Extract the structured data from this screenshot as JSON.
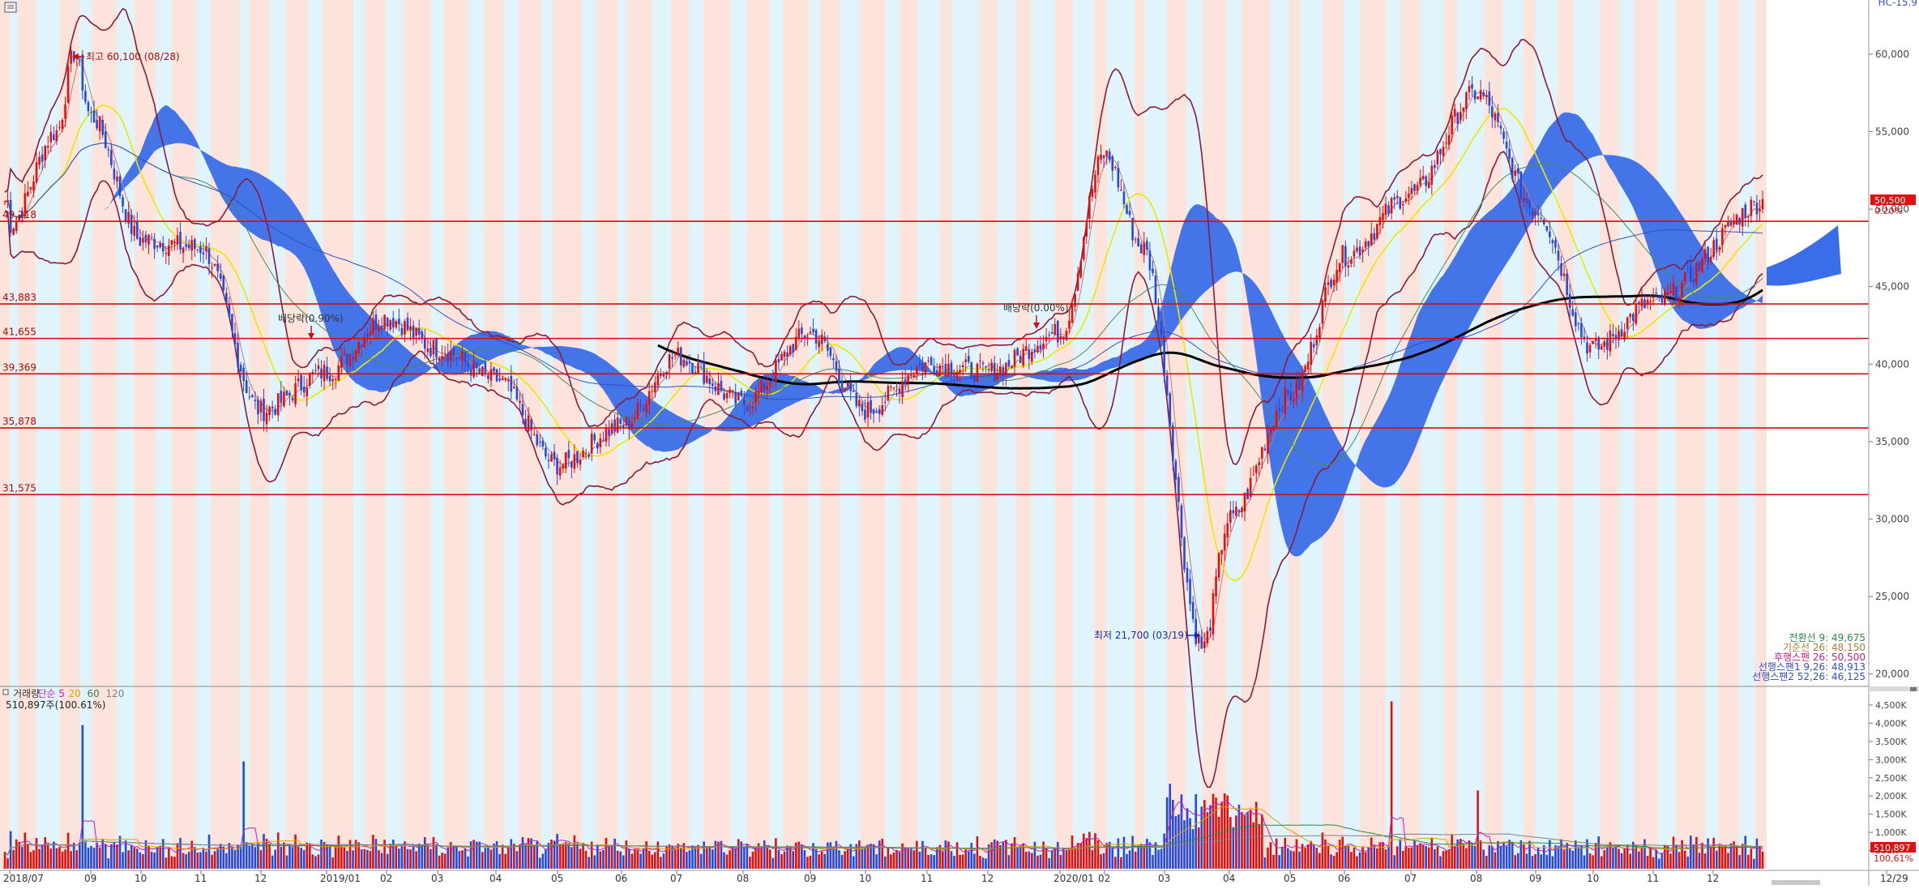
{
  "window": {
    "corner_label": "HC-15.9"
  },
  "price_axis": {
    "ticks": [
      "60,000",
      "55,000",
      "50,000",
      "45,000",
      "40,000",
      "35,000",
      "30,000",
      "25,000",
      "20,000"
    ],
    "values": [
      60000,
      55000,
      50000,
      45000,
      40000,
      35000,
      30000,
      25000,
      20000
    ],
    "ylim": [
      19300,
      63500
    ],
    "current_badge": "50,500",
    "current_change": "0.20%"
  },
  "volume_axis": {
    "ticks": [
      "4,500K",
      "4,000K",
      "3,500K",
      "3,000K",
      "2,500K",
      "2,000K",
      "1,500K",
      "1,000K",
      "500K"
    ],
    "values": [
      4500,
      4000,
      3500,
      3000,
      2500,
      2000,
      1500,
      1000,
      500
    ],
    "ylim": [
      0,
      4900
    ],
    "current_badge": "510,897",
    "current_pct": "100,61%"
  },
  "x_axis": {
    "months": [
      "2018/07",
      "09",
      "10",
      "11",
      "12",
      "2019/01",
      "02",
      "03",
      "04",
      "05",
      "06",
      "07",
      "08",
      "09",
      "10",
      "11",
      "12",
      "2020/01",
      "02",
      "03",
      "04",
      "05",
      "06",
      "07",
      "08",
      "09",
      "10",
      "11",
      "12",
      "12/29"
    ]
  },
  "colors": {
    "shade_pink": "#fce4dc",
    "shade_blue": "#e2f4fb",
    "cloud": "#3a6ee8",
    "hline": "#cc1111",
    "bollinger": "#8b1a3a",
    "long_ma": "#000000",
    "up": "#e01010",
    "down": "#2848d8",
    "ma5": "#c87878",
    "ma20": "#e8e800",
    "ma60": "#4a8a5a",
    "ma120": "#3050c0"
  },
  "annotations": {
    "high": "최고 60,100 (08/28)",
    "low": "최저 21,700 (03/19)",
    "div1": "배당락(0.90%)",
    "div2": "배당락(0.00%)"
  },
  "levels": [
    {
      "label": "49,218",
      "value": 49218
    },
    {
      "label": "43,883",
      "value": 43883
    },
    {
      "label": "41,655",
      "value": 41655
    },
    {
      "label": "39,369",
      "value": 39369
    },
    {
      "label": "35,878",
      "value": 35878
    },
    {
      "label": "31,575",
      "value": 31575
    }
  ],
  "ichimoku_legend": [
    {
      "text": "전환선 9: 49,675",
      "color": "#2a8a4a"
    },
    {
      "text": "기준선 26: 48,150",
      "color": "#b07a30"
    },
    {
      "text": "후행스팬 26: 50,500",
      "color": "#c02080"
    },
    {
      "text": "선행스팬1 9,26: 48,913",
      "color": "#3050c0"
    },
    {
      "text": "선행스팬2 52,26: 46,125",
      "color": "#3050c0"
    }
  ],
  "volume_legend": {
    "items": [
      {
        "text": "거래량",
        "color": "#333333"
      },
      {
        "text": "단순 5",
        "color": "#c020c0"
      },
      {
        "text": "20",
        "color": "#e0a000"
      },
      {
        "text": "60",
        "color": "#2a8a4a"
      },
      {
        "text": "120",
        "color": "#808080"
      }
    ],
    "value": "510,897주(100.61%)"
  },
  "chart_data": {
    "type": "candlestick",
    "period": "2018/07 – 2020/12/29 (daily)",
    "price_anchors": [
      [
        "2018/07",
        49000
      ],
      [
        "2018/08 early",
        55000
      ],
      [
        "2018/08/28",
        60100
      ],
      [
        "2018/09",
        56000
      ],
      [
        "2018/10",
        48000
      ],
      [
        "2018/11",
        47500
      ],
      [
        "2018/12",
        37000
      ],
      [
        "2019/01",
        39500
      ],
      [
        "2019/02",
        43000
      ],
      [
        "2019/03",
        41000
      ],
      [
        "2019/04",
        39000
      ],
      [
        "2019/05",
        33500
      ],
      [
        "2019/06",
        36000
      ],
      [
        "2019/07",
        40500
      ],
      [
        "2019/08",
        37500
      ],
      [
        "2019/09",
        42000
      ],
      [
        "2019/10",
        37000
      ],
      [
        "2019/11",
        40000
      ],
      [
        "2019/12",
        39500
      ],
      [
        "2020/01",
        42000
      ],
      [
        "2020/02",
        53500
      ],
      [
        "2020/03 early",
        47500
      ],
      [
        "2020/03/19",
        21700
      ],
      [
        "2020/04",
        30000
      ],
      [
        "2020/05",
        38000
      ],
      [
        "2020/06",
        47000
      ],
      [
        "2020/07",
        51000
      ],
      [
        "2020/08",
        57500
      ],
      [
        "2020/09",
        50000
      ],
      [
        "2020/10",
        41000
      ],
      [
        "2020/11",
        44000
      ],
      [
        "2020/12/29",
        50500
      ]
    ],
    "volume_spikes_K": [
      [
        "2018/08",
        3950
      ],
      [
        "2018/12",
        2950
      ],
      [
        "2020/03",
        2050
      ],
      [
        "2020/07",
        4600
      ],
      [
        "2020/08",
        2150
      ]
    ],
    "horizontal_levels": [
      49218,
      43883,
      41655,
      39369,
      35878,
      31575
    ],
    "current_price": 50500,
    "current_volume": 510897
  }
}
